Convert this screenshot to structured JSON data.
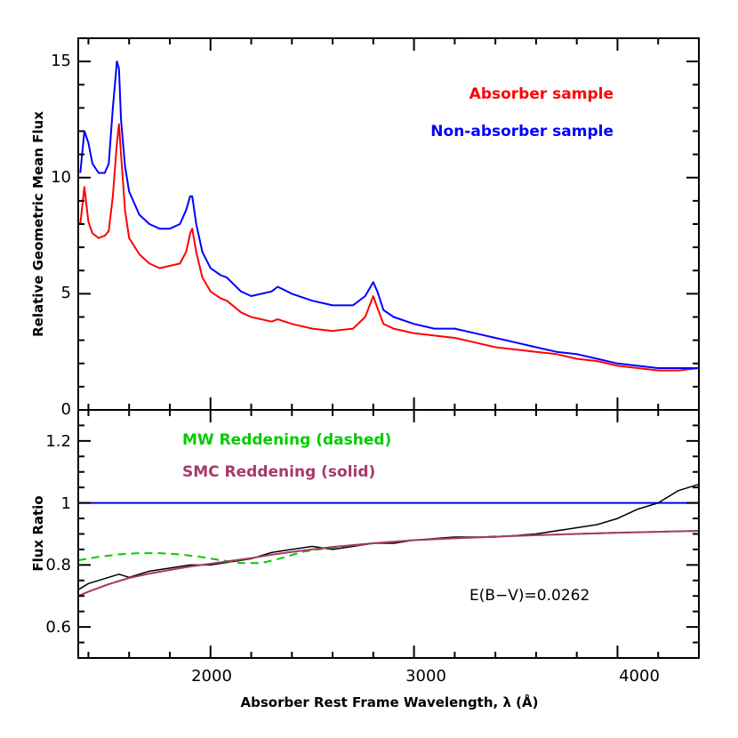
{
  "chart_data": [
    {
      "type": "line",
      "panel": "top",
      "ylabel": "Relative Geometric Mean Flux",
      "xlim": [
        1350,
        4400
      ],
      "ylim": [
        0,
        16
      ],
      "y_ticks": [
        "0",
        "5",
        "10",
        "15"
      ],
      "legend_placement": "top-right",
      "series": [
        {
          "name": "Absorber sample",
          "color": "#ff0000",
          "x": [
            1360,
            1380,
            1400,
            1420,
            1450,
            1480,
            1500,
            1520,
            1540,
            1550,
            1560,
            1580,
            1600,
            1650,
            1700,
            1750,
            1800,
            1850,
            1880,
            1900,
            1910,
            1930,
            1960,
            2000,
            2050,
            2080,
            2150,
            2200,
            2300,
            2330,
            2400,
            2500,
            2600,
            2700,
            2760,
            2800,
            2820,
            2850,
            2900,
            3000,
            3100,
            3200,
            3300,
            3400,
            3500,
            3600,
            3700,
            3800,
            3900,
            4000,
            4100,
            4200,
            4300,
            4400
          ],
          "y": [
            8.0,
            9.6,
            8.1,
            7.6,
            7.4,
            7.5,
            7.7,
            9.2,
            11.5,
            12.3,
            11.0,
            8.6,
            7.4,
            6.7,
            6.3,
            6.1,
            6.2,
            6.3,
            6.8,
            7.6,
            7.8,
            6.8,
            5.7,
            5.1,
            4.8,
            4.7,
            4.2,
            4.0,
            3.8,
            3.9,
            3.7,
            3.5,
            3.4,
            3.5,
            4.0,
            4.9,
            4.4,
            3.7,
            3.5,
            3.3,
            3.2,
            3.1,
            2.9,
            2.7,
            2.6,
            2.5,
            2.4,
            2.2,
            2.1,
            1.9,
            1.8,
            1.7,
            1.7,
            1.8
          ]
        },
        {
          "name": "Non-absorber sample",
          "color": "#0000ff",
          "x": [
            1360,
            1380,
            1400,
            1420,
            1450,
            1480,
            1500,
            1520,
            1540,
            1550,
            1560,
            1580,
            1600,
            1650,
            1700,
            1750,
            1800,
            1850,
            1880,
            1900,
            1910,
            1930,
            1960,
            2000,
            2050,
            2080,
            2150,
            2200,
            2300,
            2330,
            2400,
            2500,
            2600,
            2700,
            2760,
            2800,
            2820,
            2850,
            2900,
            3000,
            3100,
            3200,
            3300,
            3400,
            3500,
            3600,
            3700,
            3800,
            3900,
            4000,
            4100,
            4200,
            4300,
            4400
          ],
          "y": [
            10.2,
            12.0,
            11.5,
            10.6,
            10.2,
            10.2,
            10.6,
            13.0,
            15.0,
            14.7,
            12.5,
            10.5,
            9.4,
            8.4,
            8.0,
            7.8,
            7.8,
            8.0,
            8.6,
            9.2,
            9.2,
            8.0,
            6.8,
            6.1,
            5.8,
            5.7,
            5.1,
            4.9,
            5.1,
            5.3,
            5.0,
            4.7,
            4.5,
            4.5,
            4.9,
            5.5,
            5.1,
            4.3,
            4.0,
            3.7,
            3.5,
            3.5,
            3.3,
            3.1,
            2.9,
            2.7,
            2.5,
            2.4,
            2.2,
            2.0,
            1.9,
            1.8,
            1.8,
            1.8
          ]
        }
      ]
    },
    {
      "type": "line",
      "panel": "bottom",
      "xlabel": "Absorber Rest Frame Wavelength, λ (Å)",
      "ylabel": "Flux Ratio",
      "xlim": [
        1350,
        4400
      ],
      "ylim": [
        0.5,
        1.3
      ],
      "x_ticks": [
        "2000",
        "3000",
        "4000"
      ],
      "y_ticks": [
        "0.6",
        "0.8",
        "1",
        "1.2"
      ],
      "legend_placement": "top-left",
      "series": [
        {
          "name": "MW Reddening (dashed)",
          "color": "#00cc00",
          "x": [
            1350,
            1450,
            1550,
            1650,
            1750,
            1850,
            1950,
            2050,
            2150,
            2250,
            2350,
            2450,
            2550,
            2650,
            2800,
            3000,
            3200,
            3400,
            3600,
            3800,
            4000,
            4200,
            4400
          ],
          "y": [
            0.815,
            0.826,
            0.834,
            0.838,
            0.838,
            0.834,
            0.826,
            0.815,
            0.806,
            0.806,
            0.822,
            0.842,
            0.852,
            0.86,
            0.87,
            0.88,
            0.886,
            0.892,
            0.896,
            0.9,
            0.904,
            0.907,
            0.91
          ]
        },
        {
          "name": "SMC Reddening (solid)",
          "color": "#a8386a",
          "x": [
            1350,
            1400,
            1500,
            1600,
            1700,
            1800,
            1900,
            2000,
            2100,
            2200,
            2300,
            2400,
            2500,
            2600,
            2800,
            3000,
            3200,
            3400,
            3600,
            3800,
            4000,
            4200,
            4400
          ],
          "y": [
            0.7,
            0.714,
            0.738,
            0.758,
            0.772,
            0.784,
            0.795,
            0.804,
            0.813,
            0.822,
            0.833,
            0.842,
            0.85,
            0.858,
            0.87,
            0.88,
            0.886,
            0.891,
            0.896,
            0.9,
            0.904,
            0.907,
            0.91
          ]
        },
        {
          "name": "Flux ratio",
          "color": "#000000",
          "x": [
            1350,
            1400,
            1450,
            1500,
            1550,
            1600,
            1700,
            1800,
            1900,
            2000,
            2100,
            2200,
            2300,
            2400,
            2500,
            2600,
            2700,
            2800,
            2900,
            3000,
            3200,
            3400,
            3600,
            3800,
            3900,
            4000,
            4100,
            4200,
            4300,
            4400
          ],
          "y": [
            0.72,
            0.74,
            0.75,
            0.76,
            0.77,
            0.76,
            0.78,
            0.79,
            0.8,
            0.8,
            0.81,
            0.82,
            0.84,
            0.85,
            0.86,
            0.85,
            0.86,
            0.87,
            0.87,
            0.88,
            0.89,
            0.89,
            0.9,
            0.92,
            0.93,
            0.95,
            0.98,
            1.0,
            1.04,
            1.06
          ]
        }
      ],
      "reference_line": {
        "y": 1.0,
        "color": "#0000ff"
      },
      "annotation": "E(B−V)=0.0262"
    }
  ]
}
